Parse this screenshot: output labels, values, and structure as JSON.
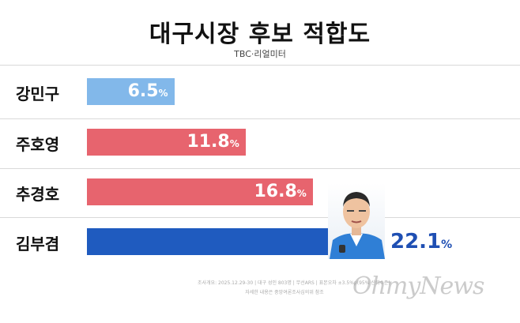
{
  "chart_data": {
    "type": "bar",
    "title": "대구시장 후보 적합도",
    "source": "TBC·리얼미터",
    "categories": [
      "강민구",
      "주호영",
      "추경호",
      "김부겸"
    ],
    "values": [
      6.5,
      11.8,
      16.8,
      22.1
    ],
    "value_suffix": "%",
    "value_labels": [
      "6.5",
      "11.8",
      "16.8",
      "22.1"
    ],
    "colors": [
      "#82b8ea",
      "#e7646e",
      "#e7646e",
      "#1f5bbf"
    ],
    "xlim": [
      0,
      22.1
    ],
    "grid": false,
    "legend": "none"
  },
  "footnote": {
    "line1": "조사개요: 2025.12.29-30 | 대구 성인 803명 | 무선ARS | 표본오차 ±3.5%p(95% 신뢰수준)",
    "line2": "자세한 내용은 중앙여론조사심의위 참조"
  },
  "watermark": "OhmyNews"
}
